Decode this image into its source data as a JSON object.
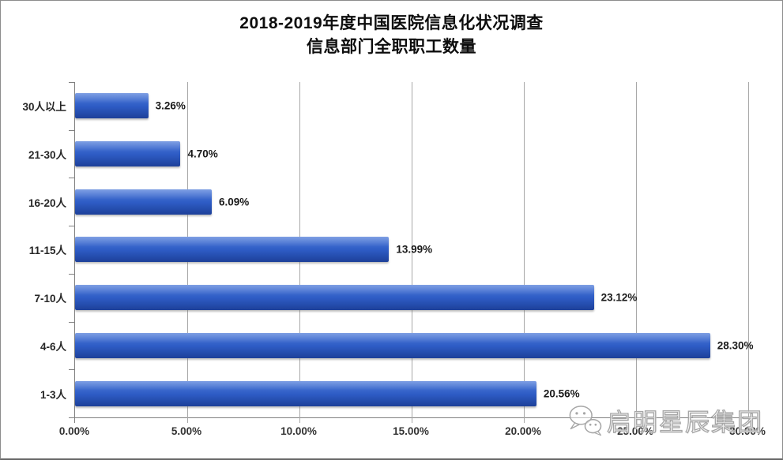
{
  "chart_data": {
    "type": "bar",
    "orientation": "horizontal",
    "title_line1": "2018-2019年度中国医院信息化状况调查",
    "title_line2": "信息部门全职职工数量",
    "categories": [
      "30人以上",
      "21-30人",
      "16-20人",
      "11-15人",
      "7-10人",
      "4-6人",
      "1-3人"
    ],
    "values": [
      3.26,
      4.7,
      6.09,
      13.99,
      23.12,
      28.3,
      20.56
    ],
    "value_labels": [
      "3.26%",
      "4.70%",
      "6.09%",
      "13.99%",
      "23.12%",
      "28.30%",
      "20.56%"
    ],
    "x_ticks": [
      "0.00%",
      "5.00%",
      "10.00%",
      "15.00%",
      "20.00%",
      "25.00%",
      "30.00%"
    ],
    "xlim": [
      0,
      30
    ],
    "grid": true,
    "legend": "none",
    "bar_colors": [
      "#4d7ad9",
      "#2e5cc5",
      "#1d4099"
    ],
    "gridline_color": "#a8a8a8",
    "axis_color": "#808080"
  },
  "watermark": {
    "text": "启明星辰集团",
    "icon": "wechat-icon"
  }
}
